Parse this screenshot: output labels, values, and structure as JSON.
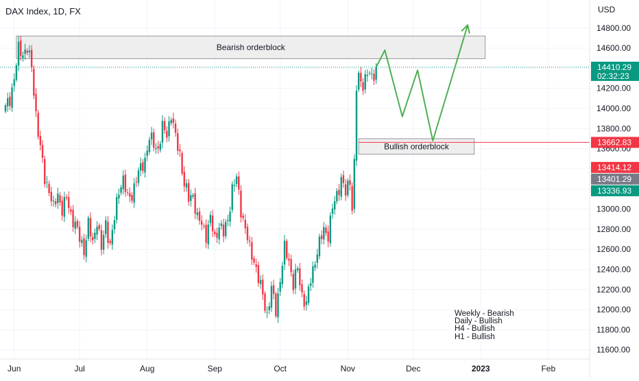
{
  "header": {
    "title": "DAX Index, 1D, FX"
  },
  "chart_data": {
    "type": "candlestick",
    "title": "DAX Index, 1D, FX",
    "currency_label": "USD",
    "ylim": [
      11530,
      15010
    ],
    "y_ticks": [
      "14800.00",
      "14600.00",
      "14400.00",
      "14200.00",
      "14000.00",
      "13800.00",
      "13600.00",
      "13400.00",
      "13200.00",
      "13000.00",
      "12800.00",
      "12600.00",
      "12400.00",
      "12200.00",
      "12000.00",
      "11800.00",
      "11600.00"
    ],
    "x_ticks": [
      {
        "label": "Jun",
        "day": 4,
        "bold": false
      },
      {
        "label": "Jul",
        "day": 34,
        "bold": false
      },
      {
        "label": "Aug",
        "day": 65,
        "bold": false
      },
      {
        "label": "Sep",
        "day": 96,
        "bold": false
      },
      {
        "label": "Oct",
        "day": 126,
        "bold": false
      },
      {
        "label": "Nov",
        "day": 157,
        "bold": false
      },
      {
        "label": "Dec",
        "day": 187,
        "bold": false
      },
      {
        "label": "2023",
        "day": 218,
        "bold": true
      },
      {
        "label": "Feb",
        "day": 249,
        "bold": false
      }
    ],
    "closes": [
      [
        0,
        14000
      ],
      [
        2,
        14100
      ],
      [
        4,
        14300
      ],
      [
        6,
        14580
      ],
      [
        8,
        14550
      ],
      [
        10,
        14600
      ],
      [
        12,
        14400
      ],
      [
        14,
        13950
      ],
      [
        16,
        13600
      ],
      [
        18,
        13300
      ],
      [
        20,
        13200
      ],
      [
        22,
        13000
      ],
      [
        24,
        13150
      ],
      [
        26,
        13000
      ],
      [
        28,
        13100
      ],
      [
        30,
        12950
      ],
      [
        32,
        12850
      ],
      [
        34,
        12700
      ],
      [
        36,
        12600
      ],
      [
        38,
        12850
      ],
      [
        40,
        12650
      ],
      [
        42,
        12900
      ],
      [
        44,
        12600
      ],
      [
        46,
        12850
      ],
      [
        48,
        12650
      ],
      [
        50,
        12900
      ],
      [
        52,
        13200
      ],
      [
        54,
        13300
      ],
      [
        56,
        13100
      ],
      [
        58,
        13150
      ],
      [
        60,
        13300
      ],
      [
        62,
        13400
      ],
      [
        64,
        13500
      ],
      [
        66,
        13700
      ],
      [
        68,
        13650
      ],
      [
        70,
        13600
      ],
      [
        72,
        13800
      ],
      [
        74,
        13750
      ],
      [
        76,
        13950
      ],
      [
        78,
        13700
      ],
      [
        80,
        13550
      ],
      [
        82,
        13250
      ],
      [
        84,
        13100
      ],
      [
        86,
        13150
      ],
      [
        88,
        12900
      ],
      [
        90,
        12850
      ],
      [
        92,
        12750
      ],
      [
        94,
        12900
      ],
      [
        96,
        12700
      ],
      [
        98,
        12850
      ],
      [
        100,
        12750
      ],
      [
        102,
        12900
      ],
      [
        104,
        13200
      ],
      [
        106,
        13300
      ],
      [
        108,
        13000
      ],
      [
        110,
        12800
      ],
      [
        112,
        12600
      ],
      [
        114,
        12500
      ],
      [
        116,
        12300
      ],
      [
        118,
        12150
      ],
      [
        120,
        11950
      ],
      [
        122,
        12200
      ],
      [
        124,
        12000
      ],
      [
        126,
        12300
      ],
      [
        128,
        12600
      ],
      [
        130,
        12500
      ],
      [
        132,
        12250
      ],
      [
        134,
        12400
      ],
      [
        136,
        12150
      ],
      [
        138,
        12050
      ],
      [
        140,
        12300
      ],
      [
        142,
        12500
      ],
      [
        144,
        12650
      ],
      [
        146,
        12800
      ],
      [
        148,
        12750
      ],
      [
        150,
        13000
      ],
      [
        152,
        13150
      ],
      [
        154,
        13300
      ],
      [
        156,
        13150
      ],
      [
        158,
        13300
      ],
      [
        159,
        13020
      ],
      [
        160,
        13450
      ],
      [
        161,
        14200
      ],
      [
        162,
        14300
      ],
      [
        164,
        14250
      ],
      [
        166,
        14350
      ],
      [
        168,
        14300
      ],
      [
        170,
        14410.29
      ]
    ],
    "price_labels": [
      {
        "price": 14410.29,
        "text": "14410.29",
        "subtext": "02:32:23",
        "color": "#089981"
      },
      {
        "price": 13662.83,
        "text": "13662.83",
        "subtext": "",
        "color": "#f23645"
      },
      {
        "price": 13414.12,
        "text": "13414.12",
        "subtext": "",
        "color": "#f23645"
      },
      {
        "price": 13401.29,
        "text": "13401.29",
        "subtext": "",
        "color": "#787b86"
      },
      {
        "price": 13336.93,
        "text": "13336.93",
        "subtext": "",
        "color": "#089981"
      }
    ],
    "zones": [
      {
        "label": "Bearish orderblock",
        "day_start": 5,
        "day_end": 220,
        "price_top": 14720,
        "price_bottom": 14495
      },
      {
        "label": "Bullish orderblock",
        "day_start": 162,
        "day_end": 215,
        "price_top": 13700,
        "price_bottom": 13545
      }
    ],
    "hline": {
      "price": 13662.83,
      "day_start": 162
    },
    "projection_path": [
      [
        170,
        14410
      ],
      [
        174,
        14580
      ],
      [
        182,
        13920
      ],
      [
        189,
        14380
      ],
      [
        196,
        13680
      ],
      [
        212,
        14830
      ]
    ],
    "bias_notes": [
      "Weekly - Bearish",
      "Daily - Bullish",
      "H4 - Bullish",
      "H1 - Bullish"
    ],
    "colors": {
      "up": "#089981",
      "down": "#f23645",
      "projection": "#4caf50",
      "zone_fill": "#e8e8ea",
      "zone_stroke": "#9598a1",
      "grid": "#f0f3fa",
      "current_line": "#089981"
    }
  }
}
